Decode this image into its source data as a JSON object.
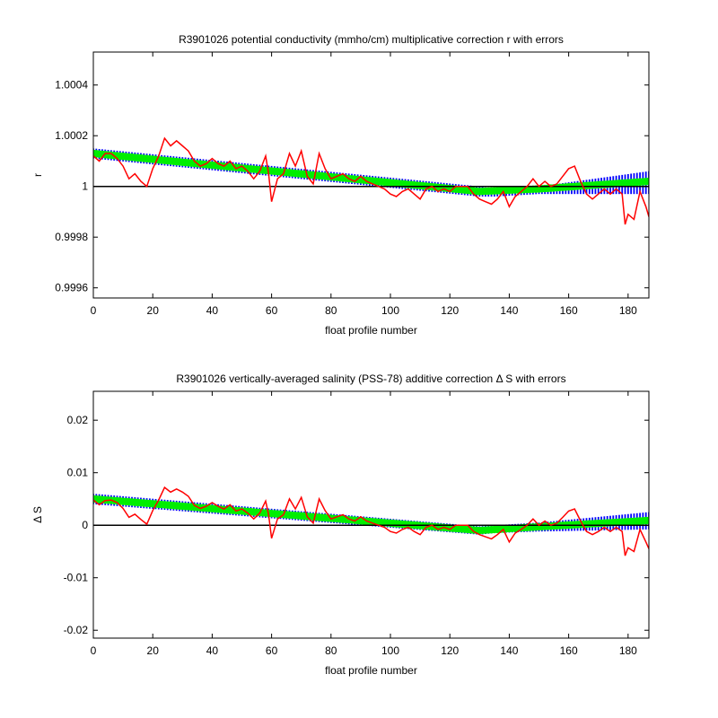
{
  "chart_data": [
    {
      "type": "line",
      "title": "R3901026 potential conductivity (mmho/cm) multiplicative correction r with errors",
      "xlabel": "float profile number",
      "ylabel": "r",
      "xlim": [
        0,
        187
      ],
      "ylim": [
        0.99956,
        1.00053
      ],
      "xticks": [
        0,
        20,
        40,
        60,
        80,
        100,
        120,
        140,
        160,
        180
      ],
      "yticks": [
        0.9996,
        0.9998,
        1,
        1.0002,
        1.0004
      ],
      "yticklabels": [
        "0.9996",
        "0.9998",
        "1",
        "1.0002",
        "1.0004"
      ],
      "reference_line": 1,
      "grid": false,
      "colors": {
        "fit": "#00ee00",
        "error": "#0000ff",
        "raw": "#ff0000",
        "reference": "#000000"
      },
      "fit": {
        "x": [
          0,
          130,
          150,
          187
        ],
        "y": [
          1.00013,
          0.99998,
          0.99999,
          1.00002
        ]
      },
      "error_band": {
        "x": [
          0,
          130,
          135,
          150,
          187
        ],
        "upper": [
          1.00015,
          1.0,
          0.99999,
          1.0,
          1.00006
        ],
        "lower": [
          1.00011,
          0.99996,
          0.99996,
          0.99997,
          0.99997
        ]
      },
      "raw": {
        "x": [
          0,
          2,
          4,
          6,
          8,
          10,
          12,
          14,
          16,
          18,
          20,
          22,
          24,
          26,
          28,
          30,
          32,
          34,
          36,
          38,
          40,
          42,
          44,
          46,
          48,
          50,
          52,
          54,
          56,
          58,
          59,
          60,
          62,
          64,
          66,
          68,
          70,
          72,
          74,
          76,
          78,
          80,
          82,
          84,
          86,
          88,
          90,
          92,
          94,
          96,
          98,
          100,
          102,
          104,
          106,
          108,
          110,
          112,
          114,
          116,
          118,
          120,
          122,
          124,
          126,
          128,
          130,
          132,
          134,
          136,
          138,
          140,
          142,
          144,
          146,
          148,
          150,
          152,
          154,
          156,
          158,
          160,
          162,
          164,
          166,
          168,
          170,
          172,
          174,
          176,
          178,
          179,
          180,
          182,
          184,
          186,
          187
        ],
        "y": [
          1.00012,
          1.0001,
          1.00013,
          1.00013,
          1.00011,
          1.00008,
          1.00003,
          1.00005,
          1.00002,
          1.0,
          1.00007,
          1.00012,
          1.00019,
          1.00016,
          1.00018,
          1.00016,
          1.00014,
          1.0001,
          1.00008,
          1.00009,
          1.00011,
          1.00009,
          1.00008,
          1.0001,
          1.00007,
          1.00008,
          1.00006,
          1.00003,
          1.00006,
          1.00012,
          1.00005,
          0.99994,
          1.00003,
          1.00005,
          1.00013,
          1.00008,
          1.00014,
          1.00004,
          1.00001,
          1.00013,
          1.00007,
          1.00003,
          1.00004,
          1.00005,
          1.00003,
          1.00002,
          1.00004,
          1.00002,
          1.00001,
          1.0,
          0.99999,
          0.99997,
          0.99996,
          0.99998,
          0.99999,
          0.99997,
          0.99995,
          0.99999,
          1.0,
          0.99998,
          0.99999,
          0.99998,
          1.0,
          1.0,
          1.0,
          0.99997,
          0.99995,
          0.99994,
          0.99993,
          0.99995,
          0.99998,
          0.99992,
          0.99996,
          0.99998,
          1.0,
          1.00003,
          1.0,
          1.00002,
          1.0,
          1.00001,
          1.00004,
          1.00007,
          1.00008,
          1.00002,
          0.99997,
          0.99995,
          0.99997,
          0.99999,
          0.99997,
          0.99999,
          0.99997,
          0.99985,
          0.99989,
          0.99987,
          0.99998,
          0.99992,
          0.99988
        ]
      }
    },
    {
      "type": "line",
      "title": "R3901026 vertically-averaged salinity (PSS-78) additive correction Δ S with errors",
      "xlabel": "float profile number",
      "ylabel": "Δ S",
      "xlim": [
        0,
        187
      ],
      "ylim": [
        -0.0215,
        0.0255
      ],
      "xticks": [
        0,
        20,
        40,
        60,
        80,
        100,
        120,
        140,
        160,
        180
      ],
      "yticks": [
        -0.02,
        -0.01,
        0,
        0.01,
        0.02
      ],
      "yticklabels": [
        "-0.02",
        "-0.01",
        "0",
        "0.01",
        "0.02"
      ],
      "reference_line": 0,
      "grid": false,
      "colors": {
        "fit": "#00ee00",
        "error": "#0000ff",
        "raw": "#ff0000",
        "reference": "#000000"
      },
      "fit": {
        "x": [
          0,
          130,
          150,
          187
        ],
        "y": [
          0.005,
          -0.001,
          -0.0003,
          0.0009
        ]
      },
      "error_band": {
        "x": [
          0,
          130,
          135,
          150,
          187
        ],
        "upper": [
          0.006,
          -0.0002,
          0.0,
          0.0005,
          0.0025
        ],
        "lower": [
          0.004,
          -0.0018,
          -0.0015,
          -0.0012,
          -0.0008
        ]
      },
      "raw": {
        "x": [
          0,
          2,
          4,
          6,
          8,
          10,
          12,
          14,
          16,
          18,
          20,
          22,
          24,
          26,
          28,
          30,
          32,
          34,
          36,
          38,
          40,
          42,
          44,
          46,
          48,
          50,
          52,
          54,
          56,
          58,
          59,
          60,
          62,
          64,
          66,
          68,
          70,
          72,
          74,
          76,
          78,
          80,
          82,
          84,
          86,
          88,
          90,
          92,
          94,
          96,
          98,
          100,
          102,
          104,
          106,
          108,
          110,
          112,
          114,
          116,
          118,
          120,
          122,
          124,
          126,
          128,
          130,
          132,
          134,
          136,
          138,
          140,
          142,
          144,
          146,
          148,
          150,
          152,
          154,
          156,
          158,
          160,
          162,
          164,
          166,
          168,
          170,
          172,
          174,
          176,
          178,
          179,
          180,
          182,
          184,
          186,
          187
        ],
        "y": [
          0.0048,
          0.0039,
          0.0047,
          0.0048,
          0.0043,
          0.0032,
          0.0015,
          0.0021,
          0.0011,
          0.0002,
          0.0028,
          0.0048,
          0.0072,
          0.0063,
          0.0069,
          0.0063,
          0.0055,
          0.0038,
          0.0032,
          0.0036,
          0.0043,
          0.0036,
          0.0031,
          0.0039,
          0.0027,
          0.0031,
          0.0023,
          0.0012,
          0.0023,
          0.0046,
          0.002,
          -0.0025,
          0.0012,
          0.002,
          0.005,
          0.0031,
          0.0053,
          0.0016,
          0.0004,
          0.005,
          0.0028,
          0.0012,
          0.0016,
          0.002,
          0.0012,
          0.0008,
          0.0016,
          0.0008,
          0.0004,
          0.0,
          -0.0004,
          -0.0012,
          -0.0015,
          -0.0008,
          -0.0004,
          -0.0012,
          -0.0018,
          -0.0004,
          0.0,
          -0.0008,
          -0.0004,
          -0.0008,
          0.0,
          0.0,
          0.0,
          -0.0012,
          -0.0018,
          -0.0022,
          -0.0026,
          -0.0018,
          -0.0008,
          -0.0032,
          -0.0015,
          -0.0008,
          0.0,
          0.0012,
          0.0,
          0.0008,
          0.0,
          0.0004,
          0.0015,
          0.0027,
          0.0031,
          0.0008,
          -0.0012,
          -0.0018,
          -0.0012,
          -0.0004,
          -0.0012,
          -0.0004,
          -0.0012,
          -0.0058,
          -0.0043,
          -0.005,
          -0.0008,
          -0.0032,
          -0.0045
        ]
      }
    }
  ]
}
